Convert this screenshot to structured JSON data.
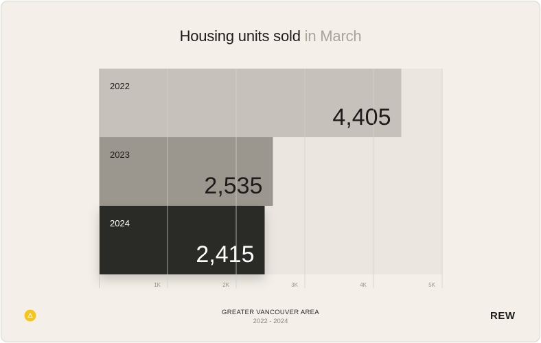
{
  "title": {
    "main": "Housing units sold",
    "highlight": "in March"
  },
  "chart_data": {
    "type": "bar",
    "orientation": "horizontal",
    "categories": [
      "2022",
      "2023",
      "2024"
    ],
    "values": [
      4405,
      2535,
      2415
    ],
    "value_labels": [
      "4,405",
      "2,535",
      "2,415"
    ],
    "bar_colors": [
      "#c6c1ba",
      "#9b978f",
      "#2c2a28"
    ],
    "label_colors": [
      "#1e1c1a",
      "#1e1c1a",
      "#ffffff"
    ],
    "xlim": [
      0,
      5000
    ],
    "xticks": [
      1000,
      2000,
      3000,
      4000,
      5000
    ],
    "xtick_labels": [
      "1K",
      "2K",
      "3K",
      "4K",
      "5K"
    ],
    "grid": true
  },
  "footer": {
    "region": "GREATER VANCOUVER AREA",
    "years": "2022 - 2024",
    "brand": "REW"
  },
  "colors": {
    "background": "#f4f0e9",
    "plot_background": "#ebe6df",
    "grid": "#d3cdc5",
    "accent": "#f5c518"
  }
}
